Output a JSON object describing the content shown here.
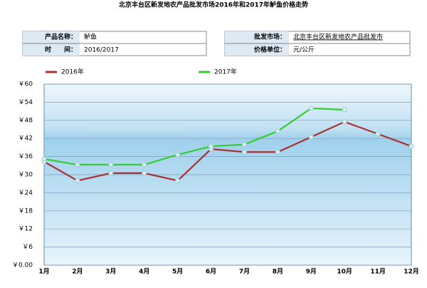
{
  "chart_data": {
    "type": "line",
    "title": "北京丰台区新发地农产品批发市场2016年和2017年鲈鱼价格走势",
    "info": [
      [
        "产品名称：",
        "鲈鱼"
      ],
      [
        "时　　间：",
        "2016/2017"
      ],
      [
        "批发市场：",
        "北京丰台区新发地农产品批发市"
      ],
      [
        "价格单位：",
        "元/公斤"
      ]
    ],
    "categories": [
      "1月",
      "2月",
      "3月",
      "4月",
      "5月",
      "6月",
      "7月",
      "8月",
      "9月",
      "10月",
      "11月",
      "12月"
    ],
    "series": [
      {
        "name": "2016年",
        "color": "#a83232",
        "values": [
          34.3,
          28,
          30.5,
          30.5,
          28,
          38.5,
          37.5,
          37.5,
          42.5,
          47.5,
          43.5,
          39.4
        ]
      },
      {
        "name": "2017年",
        "color": "#33cc33",
        "values": [
          35.2,
          33.3,
          33.3,
          33.3,
          36.6,
          39.4,
          40,
          44.4,
          52,
          51.5,
          null,
          null
        ]
      }
    ],
    "ylim": [
      0,
      60
    ],
    "yticks": [
      {
        "value": 0,
        "label": "￥0.00"
      },
      {
        "value": 6,
        "label": "￥6"
      },
      {
        "value": 12,
        "label": "￥12"
      },
      {
        "value": 18,
        "label": "￥18"
      },
      {
        "value": 24,
        "label": "￥24"
      },
      {
        "value": 30,
        "label": "￥30"
      },
      {
        "value": 36,
        "label": "￥36"
      },
      {
        "value": 42,
        "label": "￥42"
      },
      {
        "value": 48,
        "label": "￥48"
      },
      {
        "value": 54,
        "label": "￥54"
      },
      {
        "value": 60,
        "label": "￥60"
      }
    ],
    "grid": true
  }
}
